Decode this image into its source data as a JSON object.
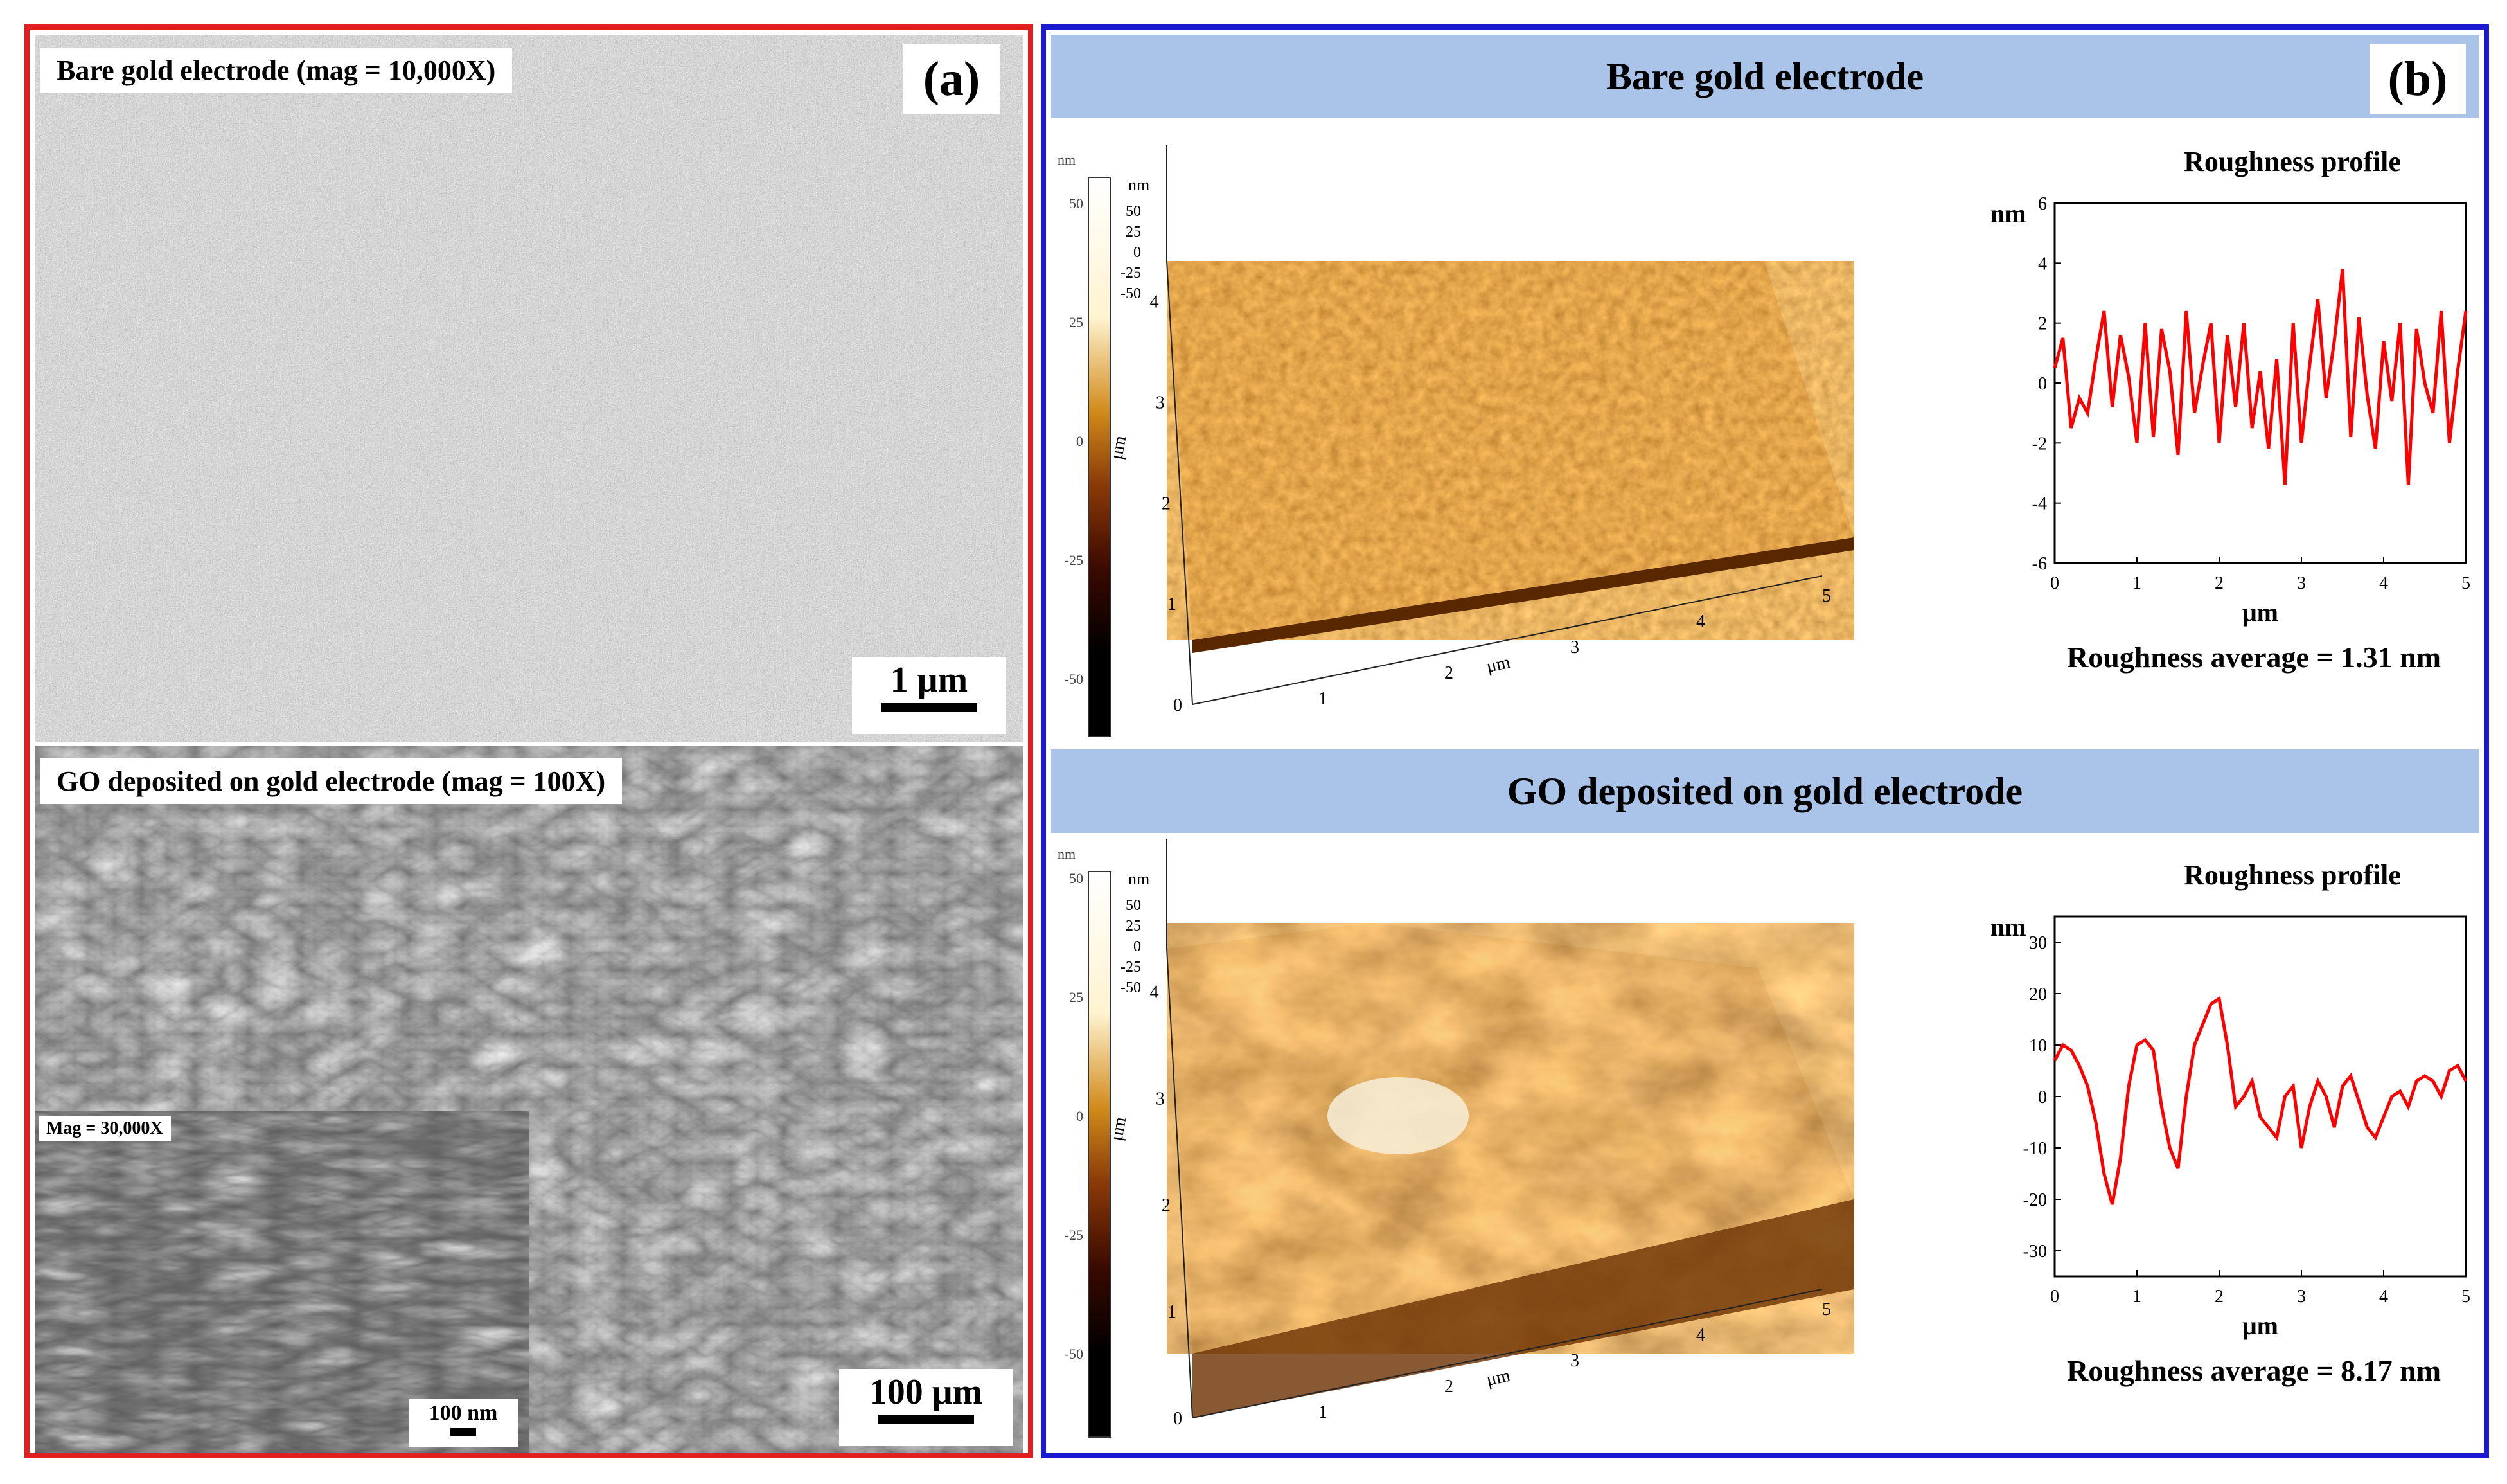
{
  "panel_a": {
    "letter": "(a)",
    "top": {
      "label": "Bare gold electrode (mag = 10,000X)",
      "scale": "1 μm"
    },
    "bottom": {
      "label": "GO deposited on gold electrode (mag = 100X)",
      "scale": "100 μm",
      "inset": {
        "label": "Mag = 30,000X",
        "scale": "100 nm"
      }
    }
  },
  "panel_b": {
    "letter": "(b)",
    "sections": [
      {
        "header": "Bare gold electrode",
        "profile_title": "Roughness profile",
        "roughness_avg": "Roughness average = 1.31 nm"
      },
      {
        "header": "GO deposited on gold electrode",
        "profile_title": "Roughness profile",
        "roughness_avg": "Roughness average = 8.17 nm"
      }
    ],
    "afm_axes": {
      "unit_nm": "nm",
      "axis_um": "μm",
      "colorbar_ticks": [
        "50",
        "25",
        "0",
        "-25",
        "-50"
      ],
      "z_ticks": [
        "50",
        "25",
        "0",
        "-25",
        "-50"
      ],
      "y_ticks": [
        "0",
        "1",
        "2",
        "3",
        "4"
      ],
      "x_ticks": [
        "1",
        "2",
        "3",
        "4",
        "5"
      ]
    }
  },
  "chart_data": [
    {
      "type": "line",
      "title": "Roughness profile",
      "xlabel": "μm",
      "ylabel": "nm",
      "xlim": [
        0,
        5
      ],
      "ylim": [
        -6,
        6
      ],
      "xticks": [
        0,
        1,
        2,
        3,
        4,
        5
      ],
      "yticks": [
        -6,
        -4,
        -2,
        0,
        2,
        4,
        6
      ],
      "series_color": "#ff0000",
      "x": [
        0,
        0.1,
        0.2,
        0.3,
        0.4,
        0.5,
        0.6,
        0.7,
        0.8,
        0.9,
        1.0,
        1.1,
        1.2,
        1.3,
        1.4,
        1.5,
        1.6,
        1.7,
        1.8,
        1.9,
        2.0,
        2.1,
        2.2,
        2.3,
        2.4,
        2.5,
        2.6,
        2.7,
        2.8,
        2.9,
        3.0,
        3.1,
        3.2,
        3.3,
        3.4,
        3.5,
        3.6,
        3.7,
        3.8,
        3.9,
        4.0,
        4.1,
        4.2,
        4.3,
        4.4,
        4.5,
        4.6,
        4.7,
        4.8,
        4.9,
        5.0
      ],
      "y": [
        0.5,
        1.5,
        -1.5,
        -0.5,
        -1.0,
        0.8,
        2.4,
        -0.8,
        1.6,
        0.2,
        -2.0,
        2.0,
        -1.8,
        1.8,
        0.4,
        -2.4,
        2.4,
        -1.0,
        0.6,
        2.0,
        -2.0,
        1.6,
        -0.8,
        2.0,
        -1.5,
        0.4,
        -2.2,
        0.8,
        -3.4,
        2.0,
        -2.0,
        0.6,
        2.8,
        -0.5,
        1.4,
        3.8,
        -1.8,
        2.2,
        -0.4,
        -2.2,
        1.4,
        -0.6,
        2.0,
        -3.4,
        1.8,
        0.0,
        -1.0,
        2.4,
        -2.0,
        0.4,
        2.4
      ]
    },
    {
      "type": "line",
      "title": "Roughness profile",
      "xlabel": "μm",
      "ylabel": "nm",
      "xlim": [
        0,
        5
      ],
      "ylim": [
        -35,
        35
      ],
      "xticks": [
        0,
        1,
        2,
        3,
        4,
        5
      ],
      "yticks": [
        -30,
        -20,
        -10,
        0,
        10,
        20,
        30
      ],
      "series_color": "#ff0000",
      "x": [
        0,
        0.1,
        0.2,
        0.3,
        0.4,
        0.5,
        0.6,
        0.7,
        0.8,
        0.9,
        1.0,
        1.1,
        1.2,
        1.3,
        1.4,
        1.5,
        1.6,
        1.7,
        1.8,
        1.9,
        2.0,
        2.1,
        2.2,
        2.3,
        2.4,
        2.5,
        2.6,
        2.7,
        2.8,
        2.9,
        3.0,
        3.1,
        3.2,
        3.3,
        3.4,
        3.5,
        3.6,
        3.7,
        3.8,
        3.9,
        4.0,
        4.1,
        4.2,
        4.3,
        4.4,
        4.5,
        4.6,
        4.7,
        4.8,
        4.9,
        5.0
      ],
      "y": [
        7,
        10,
        9,
        6,
        2,
        -5,
        -15,
        -21,
        -12,
        2,
        10,
        11,
        9,
        -2,
        -10,
        -14,
        0,
        10,
        14,
        18,
        19,
        10,
        -2,
        0,
        3,
        -4,
        -6,
        -8,
        0,
        2,
        -10,
        -2,
        3,
        0,
        -6,
        2,
        4,
        -1,
        -6,
        -8,
        -4,
        0,
        1,
        -2,
        3,
        4,
        3,
        0,
        5,
        6,
        3
      ]
    }
  ]
}
